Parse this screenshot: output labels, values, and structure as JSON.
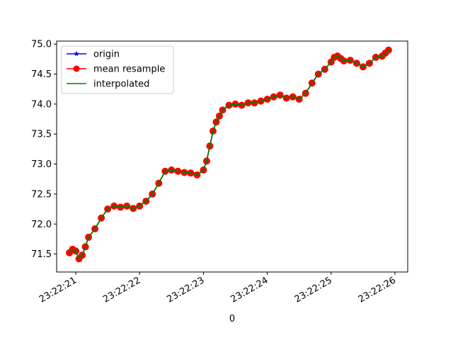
{
  "chart_data": {
    "type": "line",
    "title": "",
    "xlabel": "0",
    "ylabel": "",
    "x_axis_kind": "time (HH:MM:SS)",
    "xlim": [
      "23:22:20.700",
      "23:22:26.200"
    ],
    "ylim": [
      71.2,
      75.05
    ],
    "x_tick_labels": [
      "23:22:21",
      "23:22:22",
      "23:22:23",
      "23:22:24",
      "23:22:25",
      "23:22:26"
    ],
    "y_ticks": [
      71.5,
      72.0,
      72.5,
      73.0,
      73.5,
      74.0,
      74.5,
      75.0
    ],
    "y_tick_labels": [
      "71.5",
      "72.0",
      "72.5",
      "73.0",
      "73.5",
      "74.0",
      "74.5",
      "75.0"
    ],
    "grid": false,
    "legend_position": "top-left",
    "x": [
      "23:22:20.900",
      "23:22:20.950",
      "23:22:21.000",
      "23:22:21.050",
      "23:22:21.100",
      "23:22:21.150",
      "23:22:21.200",
      "23:22:21.300",
      "23:22:21.400",
      "23:22:21.500",
      "23:22:21.600",
      "23:22:21.700",
      "23:22:21.800",
      "23:22:21.900",
      "23:22:22.000",
      "23:22:22.100",
      "23:22:22.200",
      "23:22:22.300",
      "23:22:22.400",
      "23:22:22.500",
      "23:22:22.600",
      "23:22:22.700",
      "23:22:22.800",
      "23:22:22.900",
      "23:22:23.000",
      "23:22:23.050",
      "23:22:23.100",
      "23:22:23.150",
      "23:22:23.200",
      "23:22:23.250",
      "23:22:23.300",
      "23:22:23.400",
      "23:22:23.500",
      "23:22:23.600",
      "23:22:23.700",
      "23:22:23.800",
      "23:22:23.900",
      "23:22:24.000",
      "23:22:24.100",
      "23:22:24.200",
      "23:22:24.300",
      "23:22:24.400",
      "23:22:24.500",
      "23:22:24.600",
      "23:22:24.700",
      "23:22:24.800",
      "23:22:24.900",
      "23:22:25.000",
      "23:22:25.050",
      "23:22:25.100",
      "23:22:25.150",
      "23:22:25.200",
      "23:22:25.300",
      "23:22:25.400",
      "23:22:25.500",
      "23:22:25.600",
      "23:22:25.700",
      "23:22:25.800",
      "23:22:25.850",
      "23:22:25.900"
    ],
    "series": [
      {
        "name": "origin",
        "color": "#0000ff",
        "marker": "star",
        "values": [
          71.52,
          71.58,
          71.55,
          71.42,
          71.48,
          71.62,
          71.78,
          71.92,
          72.1,
          72.25,
          72.3,
          72.28,
          72.3,
          72.26,
          72.3,
          72.38,
          72.5,
          72.68,
          72.88,
          72.9,
          72.88,
          72.86,
          72.85,
          72.82,
          72.9,
          73.05,
          73.3,
          73.55,
          73.7,
          73.8,
          73.9,
          73.98,
          74.0,
          73.98,
          74.02,
          74.02,
          74.05,
          74.08,
          74.12,
          74.15,
          74.1,
          74.12,
          74.08,
          74.18,
          74.35,
          74.5,
          74.58,
          74.7,
          74.78,
          74.8,
          74.76,
          74.72,
          74.73,
          74.68,
          74.62,
          74.68,
          74.78,
          74.8,
          74.85,
          74.9
        ]
      },
      {
        "name": "mean resample",
        "color": "#ff0000",
        "marker": "circle",
        "values": [
          71.52,
          71.58,
          71.55,
          71.42,
          71.48,
          71.62,
          71.78,
          71.92,
          72.1,
          72.25,
          72.3,
          72.28,
          72.3,
          72.26,
          72.3,
          72.38,
          72.5,
          72.68,
          72.88,
          72.9,
          72.88,
          72.86,
          72.85,
          72.82,
          72.9,
          73.05,
          73.3,
          73.55,
          73.7,
          73.8,
          73.9,
          73.98,
          74.0,
          73.98,
          74.02,
          74.02,
          74.05,
          74.08,
          74.12,
          74.15,
          74.1,
          74.12,
          74.08,
          74.18,
          74.35,
          74.5,
          74.58,
          74.7,
          74.78,
          74.8,
          74.76,
          74.72,
          74.73,
          74.68,
          74.62,
          74.68,
          74.78,
          74.8,
          74.85,
          74.9
        ]
      },
      {
        "name": "interpolated",
        "color": "#008000",
        "marker": "none",
        "values": [
          71.52,
          71.58,
          71.55,
          71.42,
          71.48,
          71.62,
          71.78,
          71.92,
          72.1,
          72.25,
          72.3,
          72.28,
          72.3,
          72.26,
          72.3,
          72.38,
          72.5,
          72.68,
          72.88,
          72.9,
          72.88,
          72.86,
          72.85,
          72.82,
          72.9,
          73.05,
          73.3,
          73.55,
          73.7,
          73.8,
          73.9,
          73.98,
          74.0,
          73.98,
          74.02,
          74.02,
          74.05,
          74.08,
          74.12,
          74.15,
          74.1,
          74.12,
          74.08,
          74.18,
          74.35,
          74.5,
          74.58,
          74.7,
          74.78,
          74.8,
          74.76,
          74.72,
          74.73,
          74.68,
          74.62,
          74.68,
          74.78,
          74.8,
          74.85,
          74.9
        ]
      }
    ]
  }
}
